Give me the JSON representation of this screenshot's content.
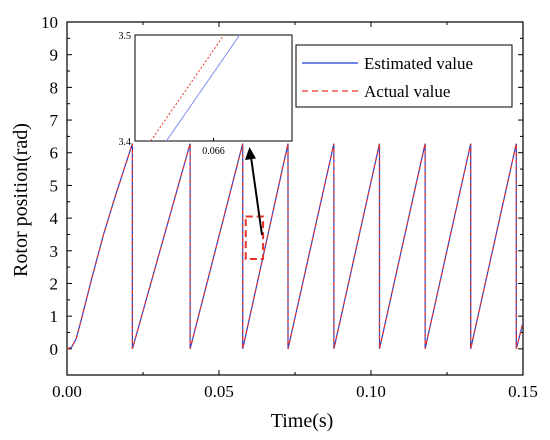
{
  "chart_data": {
    "type": "line",
    "title": "",
    "xlabel": "Time(s)",
    "ylabel": "Rotor position(rad)",
    "xlim": [
      0.0,
      0.15
    ],
    "ylim": [
      -0.8,
      10
    ],
    "xticks": [
      0.0,
      0.05,
      0.1,
      0.15
    ],
    "xtick_labels": [
      "0.00",
      "0.05",
      "0.10",
      "0.15"
    ],
    "yticks": [
      0,
      1,
      2,
      3,
      4,
      5,
      6,
      7,
      8,
      9,
      10
    ],
    "ytick_labels": [
      "0",
      "1",
      "2",
      "3",
      "4",
      "5",
      "6",
      "7",
      "8",
      "9",
      "10"
    ],
    "grid": false,
    "legend_position": "top-right",
    "series": [
      {
        "name": "Estimated value",
        "color": "#1f3fd6",
        "style": "solid",
        "x": [
          0.0,
          0.0015,
          0.003,
          0.005,
          0.008,
          0.012,
          0.016,
          0.0215,
          0.0215,
          0.0405,
          0.0405,
          0.0578,
          0.0578,
          0.0727,
          0.0727,
          0.0878,
          0.0878,
          0.1028,
          0.1028,
          0.1178,
          0.1178,
          0.1328,
          0.1328,
          0.1478,
          0.1478,
          0.15
        ],
        "y": [
          0.0,
          0.05,
          0.3,
          1.0,
          2.1,
          3.5,
          4.7,
          6.28,
          0.0,
          6.28,
          0.0,
          6.28,
          0.0,
          6.28,
          0.0,
          6.28,
          0.0,
          6.28,
          0.0,
          6.28,
          0.0,
          6.28,
          0.0,
          6.28,
          0.0,
          0.8
        ]
      },
      {
        "name": "Actual value",
        "color": "#e8322a",
        "style": "dashed",
        "x": [
          0.0,
          0.0015,
          0.003,
          0.005,
          0.008,
          0.012,
          0.016,
          0.0215,
          0.0215,
          0.0405,
          0.0405,
          0.0578,
          0.0578,
          0.0727,
          0.0727,
          0.0878,
          0.0878,
          0.1028,
          0.1028,
          0.1178,
          0.1178,
          0.1328,
          0.1328,
          0.1478,
          0.1478,
          0.15
        ],
        "y": [
          0.0,
          0.05,
          0.3,
          1.0,
          2.1,
          3.5,
          4.7,
          6.28,
          0.0,
          6.28,
          0.0,
          6.28,
          0.0,
          6.28,
          0.0,
          6.28,
          0.0,
          6.28,
          0.0,
          6.28,
          0.0,
          6.28,
          0.0,
          6.28,
          0.0,
          0.8
        ]
      }
    ],
    "zoom_region": {
      "x": [
        0.0588,
        0.0645
      ],
      "y": [
        2.75,
        4.05
      ]
    },
    "inset": {
      "xlim": [
        0.06525,
        0.06675
      ],
      "ylim": [
        3.4,
        3.5
      ],
      "xtick": 0.066,
      "xtick_label": "0.066",
      "ytick_labels": [
        "3.5",
        "3.4"
      ],
      "estimated": {
        "x": [
          0.06555,
          0.06625
        ],
        "y": [
          3.4,
          3.5
        ]
      },
      "actual": {
        "x": [
          0.0654,
          0.0661
        ],
        "y": [
          3.4,
          3.5
        ]
      }
    }
  }
}
